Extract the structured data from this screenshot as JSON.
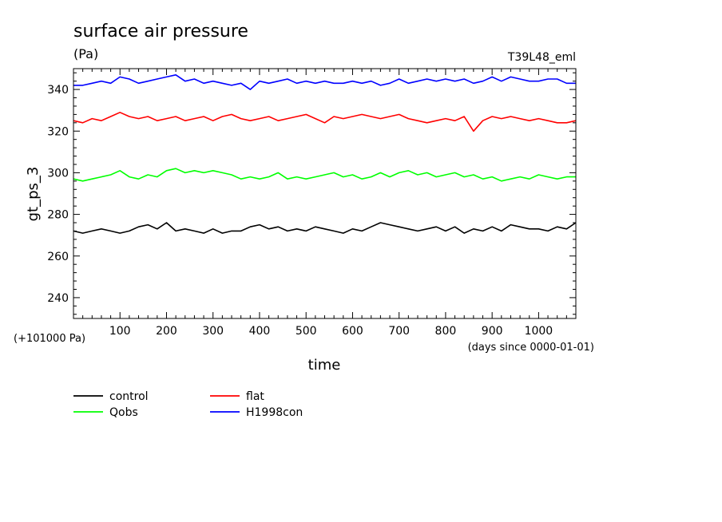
{
  "chart_data": {
    "type": "line",
    "title": "surface air pressure",
    "unit": "(Pa)",
    "experiment": "T39L48_eml",
    "xlabel": "time",
    "x_unit": "(days since 0000-01-01)",
    "ylabel": "gt_ps_3",
    "y_offset_label": "(+101000 Pa)",
    "xlim": [
      0,
      1080
    ],
    "ylim": [
      230,
      350
    ],
    "x_ticks": [
      100,
      200,
      300,
      400,
      500,
      600,
      700,
      800,
      900,
      1000
    ],
    "x_tick_labels": [
      "100",
      "200",
      "300",
      "400",
      "500",
      "600",
      "700",
      "800",
      "900",
      "1000"
    ],
    "y_ticks": [
      240,
      260,
      280,
      300,
      320,
      340
    ],
    "y_tick_labels": [
      "240",
      "260",
      "280",
      "300",
      "320",
      "340"
    ],
    "grid": false,
    "legend_position": "bottom-left",
    "x": [
      0,
      20,
      40,
      60,
      80,
      100,
      120,
      140,
      160,
      180,
      200,
      220,
      240,
      260,
      280,
      300,
      320,
      340,
      360,
      380,
      400,
      420,
      440,
      460,
      480,
      500,
      520,
      540,
      560,
      580,
      600,
      620,
      640,
      660,
      680,
      700,
      720,
      740,
      760,
      780,
      800,
      820,
      840,
      860,
      880,
      900,
      920,
      940,
      960,
      980,
      1000,
      1020,
      1040,
      1060,
      1080
    ],
    "series": [
      {
        "name": "control",
        "color": "#000000",
        "values": [
          272,
          271,
          272,
          273,
          272,
          271,
          272,
          274,
          275,
          273,
          276,
          272,
          273,
          272,
          271,
          273,
          271,
          272,
          272,
          274,
          275,
          273,
          274,
          272,
          273,
          272,
          274,
          273,
          272,
          271,
          273,
          272,
          274,
          276,
          275,
          274,
          273,
          272,
          273,
          274,
          272,
          274,
          271,
          273,
          272,
          274,
          272,
          275,
          274,
          273,
          273,
          272,
          274,
          273,
          276
        ]
      },
      {
        "name": "flat",
        "color": "#ff0000",
        "values": [
          325,
          324,
          326,
          325,
          327,
          329,
          327,
          326,
          327,
          325,
          326,
          327,
          325,
          326,
          327,
          325,
          327,
          328,
          326,
          325,
          326,
          327,
          325,
          326,
          327,
          328,
          326,
          324,
          327,
          326,
          327,
          328,
          327,
          326,
          327,
          328,
          326,
          325,
          324,
          325,
          326,
          325,
          327,
          320,
          325,
          327,
          326,
          327,
          326,
          325,
          326,
          325,
          324,
          324,
          325
        ]
      },
      {
        "name": "Qobs",
        "color": "#00ff00",
        "values": [
          297,
          296,
          297,
          298,
          299,
          301,
          298,
          297,
          299,
          298,
          301,
          302,
          300,
          301,
          300,
          301,
          300,
          299,
          297,
          298,
          297,
          298,
          300,
          297,
          298,
          297,
          298,
          299,
          300,
          298,
          299,
          297,
          298,
          300,
          298,
          300,
          301,
          299,
          300,
          298,
          299,
          300,
          298,
          299,
          297,
          298,
          296,
          297,
          298,
          297,
          299,
          298,
          297,
          298,
          298
        ]
      },
      {
        "name": "H1998con",
        "color": "#0000ff",
        "values": [
          342,
          342,
          343,
          344,
          343,
          346,
          345,
          343,
          344,
          345,
          346,
          347,
          344,
          345,
          343,
          344,
          343,
          342,
          343,
          340,
          344,
          343,
          344,
          345,
          343,
          344,
          343,
          344,
          343,
          343,
          344,
          343,
          344,
          342,
          343,
          345,
          343,
          344,
          345,
          344,
          345,
          344,
          345,
          343,
          344,
          346,
          344,
          346,
          345,
          344,
          344,
          345,
          345,
          343,
          343
        ]
      }
    ]
  }
}
